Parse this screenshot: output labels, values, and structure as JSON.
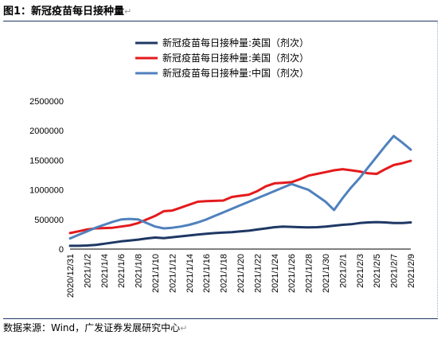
{
  "header": {
    "title": "图1：新冠疫苗每日接种量",
    "return_mark": "↵"
  },
  "footer": {
    "source": "数据来源：Wind，广发证券发展研究中心",
    "return_mark": "↵"
  },
  "colors": {
    "uk": "#1f3864",
    "us": "#e41a1c",
    "cn": "#4f81bd"
  },
  "chart_data": {
    "type": "line",
    "title": "",
    "xlabel": "",
    "ylabel": "",
    "ylim": [
      0,
      2500000
    ],
    "yticks": [
      0,
      500000,
      1000000,
      1500000,
      2000000,
      2500000
    ],
    "ytick_labels": [
      "0",
      "500000",
      "1000000",
      "1500000",
      "2000000",
      "2500000"
    ],
    "x": [
      "2020/12/31",
      "2021/1/1",
      "2021/1/2",
      "2021/1/3",
      "2021/1/4",
      "2021/1/5",
      "2021/1/6",
      "2021/1/7",
      "2021/1/8",
      "2021/1/9",
      "2021/1/10",
      "2021/1/11",
      "2021/1/12",
      "2021/1/13",
      "2021/1/14",
      "2021/1/15",
      "2021/1/16",
      "2021/1/17",
      "2021/1/18",
      "2021/1/19",
      "2021/1/20",
      "2021/1/21",
      "2021/1/22",
      "2021/1/23",
      "2021/1/24",
      "2021/1/25",
      "2021/1/26",
      "2021/1/27",
      "2021/1/28",
      "2021/1/29",
      "2021/1/30",
      "2021/1/31",
      "2021/2/1",
      "2021/2/2",
      "2021/2/3",
      "2021/2/4",
      "2021/2/5",
      "2021/2/6",
      "2021/2/7",
      "2021/2/8",
      "2021/2/9"
    ],
    "xtick_labels": [
      "2020/12/31",
      "2021/1/2",
      "2021/1/4",
      "2021/1/6",
      "2021/1/8",
      "2021/1/10",
      "2021/1/12",
      "2021/1/14",
      "2021/1/16",
      "2021/1/18",
      "2021/1/20",
      "2021/1/22",
      "2021/1/24",
      "2021/1/26",
      "2021/1/28",
      "2021/1/30",
      "2021/2/1",
      "2021/2/3",
      "2021/2/5",
      "2021/2/7",
      "2021/2/9"
    ],
    "legend_position": "top-right",
    "series": [
      {
        "name": "新冠疫苗每日接种量:英国（剂次）",
        "color": "#1f3864",
        "values": [
          55000,
          55000,
          60000,
          70000,
          90000,
          110000,
          130000,
          145000,
          160000,
          180000,
          195000,
          185000,
          200000,
          215000,
          230000,
          245000,
          260000,
          270000,
          280000,
          285000,
          300000,
          310000,
          330000,
          350000,
          370000,
          380000,
          375000,
          370000,
          365000,
          370000,
          380000,
          395000,
          410000,
          420000,
          440000,
          450000,
          455000,
          450000,
          440000,
          440000,
          450000
        ]
      },
      {
        "name": "新冠疫苗每日接种量:美国（剂次）",
        "color": "#e41a1c",
        "values": [
          270000,
          300000,
          330000,
          350000,
          355000,
          360000,
          380000,
          400000,
          440000,
          500000,
          560000,
          640000,
          650000,
          700000,
          750000,
          800000,
          810000,
          815000,
          820000,
          880000,
          900000,
          920000,
          980000,
          1060000,
          1110000,
          1120000,
          1130000,
          1180000,
          1240000,
          1270000,
          1300000,
          1330000,
          1350000,
          1330000,
          1310000,
          1280000,
          1270000,
          1350000,
          1420000,
          1450000,
          1490000
        ]
      },
      {
        "name": "新冠疫苗每日接种量:中国（剂次）",
        "color": "#4f81bd",
        "values": [
          180000,
          240000,
          300000,
          360000,
          410000,
          460000,
          500000,
          510000,
          500000,
          440000,
          380000,
          350000,
          360000,
          380000,
          410000,
          450000,
          500000,
          560000,
          620000,
          680000,
          740000,
          800000,
          860000,
          920000,
          980000,
          1040000,
          1100000,
          1050000,
          1000000,
          900000,
          800000,
          660000,
          860000,
          1040000,
          1200000,
          1380000,
          1560000,
          1740000,
          1910000,
          1800000,
          1680000
        ]
      }
    ]
  }
}
